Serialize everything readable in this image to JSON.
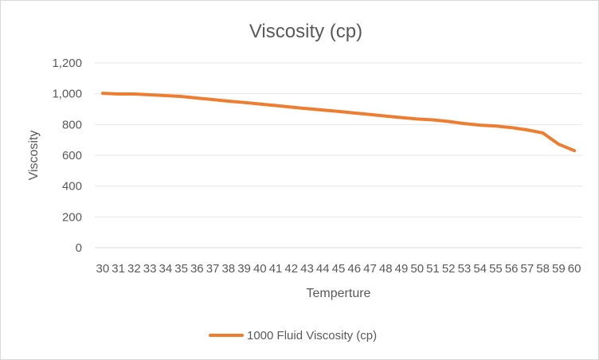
{
  "chart_data": {
    "type": "line",
    "title": "Viscosity (cp)",
    "xlabel": "Temperture",
    "ylabel": "Viscosity",
    "ylim": [
      0,
      1200
    ],
    "y_ticks": [
      "0",
      "200",
      "400",
      "600",
      "800",
      "1,000",
      "1,200"
    ],
    "y_tick_values": [
      0,
      200,
      400,
      600,
      800,
      1000,
      1200
    ],
    "grid": "horizontal",
    "legend": "bottom",
    "categories": [
      "30",
      "31",
      "32",
      "33",
      "34",
      "35",
      "36",
      "37",
      "38",
      "39",
      "40",
      "41",
      "42",
      "43",
      "44",
      "45",
      "46",
      "47",
      "48",
      "49",
      "50",
      "51",
      "52",
      "53",
      "54",
      "55",
      "56",
      "57",
      "58",
      "59",
      "60"
    ],
    "series": [
      {
        "name": "1000 Fluid  Viscosity (cp)",
        "color": "#ED7D31",
        "values": [
          1003,
          998,
          998,
          993,
          988,
          982,
          972,
          962,
          952,
          943,
          933,
          923,
          913,
          903,
          894,
          885,
          875,
          865,
          855,
          845,
          836,
          830,
          820,
          806,
          796,
          790,
          780,
          765,
          745,
          672,
          630
        ]
      }
    ]
  }
}
